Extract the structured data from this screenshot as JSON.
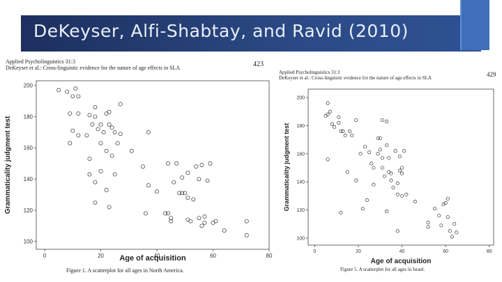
{
  "slide": {
    "title": "DeKeyser, Alfi-Shabtay, and Ravid (2010)",
    "colors": {
      "title_bar": "#22376a",
      "title_text": "#e9eef8",
      "accent": "#3e6fb8"
    }
  },
  "figures": [
    {
      "journal": "Applied Psycholinguistics 31:3",
      "running_head": "DeKeyser et al.: Cross-linguistic evidence for the nature of age effects in SLA",
      "page_number": "423",
      "caption": "Figure 1.   A scatterplot for all ages in North America."
    },
    {
      "journal": "Applied Psycholinguistics 31:3",
      "running_head": "DeKeyser et al.: Cross-linguistic evidence for the nature of age effects in SLA",
      "page_number": "429",
      "caption": "Figure 5.   A scatterplot for all ages in Israel."
    }
  ],
  "chart_data": [
    {
      "type": "scatter",
      "title": "",
      "xlabel": "Age of acquisition",
      "ylabel": "Grammaticality judgment test",
      "xlim": [
        -3,
        80
      ],
      "ylim": [
        95,
        203
      ],
      "xticks": [
        0,
        20,
        40,
        60,
        80
      ],
      "yticks": [
        100,
        120,
        140,
        160,
        180,
        200
      ],
      "grid": false,
      "series": [
        {
          "name": "North America",
          "points": [
            [
              5,
              197
            ],
            [
              8,
              196
            ],
            [
              10,
              193
            ],
            [
              12,
              193
            ],
            [
              11,
              198
            ],
            [
              9,
              182
            ],
            [
              12,
              182
            ],
            [
              10,
              171
            ],
            [
              9,
              163
            ],
            [
              12,
              168
            ],
            [
              15,
              168
            ],
            [
              16,
              181
            ],
            [
              18,
              186
            ],
            [
              18,
              180
            ],
            [
              19,
              172
            ],
            [
              17,
              175
            ],
            [
              20,
              175
            ],
            [
              21,
              170
            ],
            [
              22,
              182
            ],
            [
              23,
              183
            ],
            [
              23,
              175
            ],
            [
              24,
              173
            ],
            [
              25,
              170
            ],
            [
              26,
              163
            ],
            [
              27,
              169
            ],
            [
              27,
              188
            ],
            [
              20,
              163
            ],
            [
              22,
              158
            ],
            [
              20,
              145
            ],
            [
              16,
              153
            ],
            [
              16,
              143
            ],
            [
              18,
              138
            ],
            [
              18,
              125
            ],
            [
              22,
              133
            ],
            [
              23,
              122
            ],
            [
              24,
              155
            ],
            [
              25,
              143
            ],
            [
              31,
              158
            ],
            [
              35,
              148
            ],
            [
              37,
              170
            ],
            [
              37,
              136
            ],
            [
              36,
              118
            ],
            [
              40,
              132
            ],
            [
              43,
              118
            ],
            [
              44,
              118
            ],
            [
              44,
              150
            ],
            [
              45,
              115
            ],
            [
              45,
              113
            ],
            [
              46,
              138
            ],
            [
              48,
              131
            ],
            [
              49,
              131
            ],
            [
              50,
              131
            ],
            [
              51,
              128
            ],
            [
              51,
              114
            ],
            [
              52,
              113
            ],
            [
              53,
              127
            ],
            [
              47,
              150
            ],
            [
              49,
              141
            ],
            [
              51,
              144
            ],
            [
              54,
              148
            ],
            [
              55,
              140
            ],
            [
              56,
              149
            ],
            [
              55,
              115
            ],
            [
              56,
              110
            ],
            [
              57,
              116
            ],
            [
              57,
              112
            ],
            [
              58,
              139
            ],
            [
              59,
              150
            ],
            [
              60,
              112
            ],
            [
              61,
              113
            ],
            [
              64,
              107
            ],
            [
              72,
              113
            ],
            [
              72,
              104
            ]
          ]
        }
      ]
    },
    {
      "type": "scatter",
      "title": "",
      "xlabel": "Age of acquisition",
      "ylabel": "Grammaticality judgment test",
      "xlim": [
        -3,
        82
      ],
      "ylim": [
        95,
        206
      ],
      "xticks": [
        0,
        20,
        40,
        60,
        80
      ],
      "yticks": [
        100,
        120,
        140,
        160,
        180,
        200
      ],
      "grid": false,
      "series": [
        {
          "name": "Israel",
          "points": [
            [
              5,
              187
            ],
            [
              6,
              196
            ],
            [
              6,
              188
            ],
            [
              7,
              190
            ],
            [
              8,
              181
            ],
            [
              9,
              179
            ],
            [
              11,
              186
            ],
            [
              11,
              182
            ],
            [
              12,
              176
            ],
            [
              13,
              176
            ],
            [
              14,
              173
            ],
            [
              16,
              176
            ],
            [
              17,
              173
            ],
            [
              19,
              184
            ],
            [
              6,
              156
            ],
            [
              15,
              147
            ],
            [
              19,
              141
            ],
            [
              12,
              118
            ],
            [
              21,
              160
            ],
            [
              23,
              165
            ],
            [
              25,
              161
            ],
            [
              26,
              153
            ],
            [
              27,
              150
            ],
            [
              27,
              138
            ],
            [
              29,
              171
            ],
            [
              29,
              160
            ],
            [
              30,
              171
            ],
            [
              30,
              163
            ],
            [
              31,
              184
            ],
            [
              31,
              157
            ],
            [
              31,
              150
            ],
            [
              32,
              144
            ],
            [
              33,
              183
            ],
            [
              33,
              166
            ],
            [
              34,
              157
            ],
            [
              34,
              147
            ],
            [
              35,
              146
            ],
            [
              35,
              141
            ],
            [
              36,
              136
            ],
            [
              37,
              162
            ],
            [
              38,
              139
            ],
            [
              38,
              131
            ],
            [
              39,
              158
            ],
            [
              39,
              148
            ],
            [
              40,
              146
            ],
            [
              40,
              150
            ],
            [
              41,
              162
            ],
            [
              42,
              131
            ],
            [
              24,
              127
            ],
            [
              22,
              121
            ],
            [
              33,
              119
            ],
            [
              38,
              105
            ],
            [
              40,
              130
            ],
            [
              46,
              126
            ],
            [
              52,
              111
            ],
            [
              52,
              108
            ],
            [
              55,
              121
            ],
            [
              57,
              116
            ],
            [
              58,
              109
            ],
            [
              59,
              124
            ],
            [
              60,
              125
            ],
            [
              61,
              128
            ],
            [
              61,
              115
            ],
            [
              62,
              105
            ],
            [
              63,
              101
            ],
            [
              64,
              110
            ],
            [
              65,
              104
            ]
          ]
        }
      ]
    }
  ]
}
